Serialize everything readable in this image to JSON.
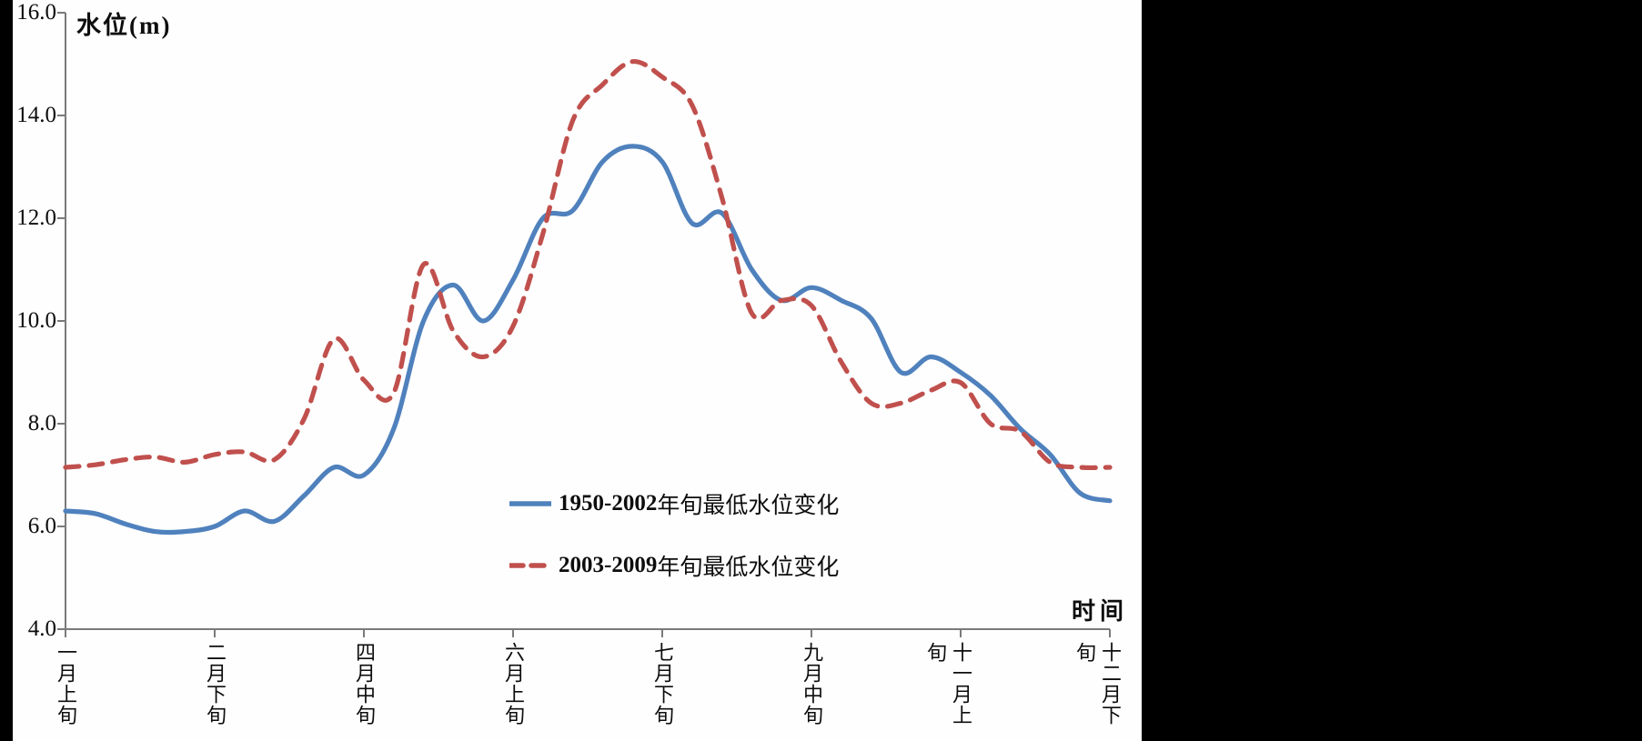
{
  "page": {
    "background_color": "#000000",
    "panel_color": "#fefefe"
  },
  "chart": {
    "y_axis": {
      "title": "水位(m)",
      "tick_labels": [
        "16.0",
        "14.0",
        "12.0",
        "10.0",
        "8.0",
        "6.0",
        "4.0"
      ],
      "tick_values": [
        16.0,
        14.0,
        12.0,
        10.0,
        8.0,
        6.0,
        4.0
      ]
    },
    "x_axis": {
      "title": "时间",
      "tick_labels": [
        "一月上旬",
        "二月下旬",
        "四月中旬",
        "六月上旬",
        "七月下旬",
        "九月中旬",
        "十一月上旬",
        "十二月下旬"
      ],
      "tick_point_indices": [
        0,
        5,
        10,
        15,
        20,
        25,
        30,
        35
      ]
    },
    "legend": [
      {
        "range": "1950-2002",
        "suffix": "年旬最低水位变化",
        "color": "#4F81BD",
        "style": "solid"
      },
      {
        "range": "2003-2009",
        "suffix": "年旬最低水位变化",
        "color": "#C0504D",
        "style": "dashed"
      }
    ],
    "axis_color": "#7a7a7a",
    "text_color": "#0d0d0d"
  },
  "chart_data": {
    "type": "line",
    "title": "",
    "xlabel": "时间",
    "ylabel": "水位(m)",
    "ylim": [
      4.0,
      16.0
    ],
    "y_tick_step": 2.0,
    "n_points": 36,
    "x_unit": "旬 (ten-day period), 36 per year",
    "x_tick_labels": [
      "一月上旬",
      "二月下旬",
      "四月中旬",
      "六月上旬",
      "七月下旬",
      "九月中旬",
      "十一月上旬",
      "十二月下旬"
    ],
    "x_tick_indices": [
      0,
      5,
      10,
      15,
      20,
      25,
      30,
      35
    ],
    "grid": false,
    "smooth": true,
    "legend_position": "inside-lower-center",
    "series": [
      {
        "name": "1950-2002年旬最低水位变化",
        "color": "#4F81BD",
        "line_style": "solid",
        "values": [
          6.3,
          6.25,
          6.05,
          5.9,
          5.9,
          6.0,
          6.3,
          6.1,
          6.6,
          7.15,
          7.0,
          7.9,
          10.0,
          10.7,
          10.0,
          10.8,
          12.0,
          12.15,
          13.1,
          13.4,
          13.1,
          11.9,
          12.1,
          11.0,
          10.4,
          10.65,
          10.4,
          10.05,
          9.0,
          9.3,
          9.0,
          8.55,
          7.9,
          7.4,
          6.65,
          6.5
        ]
      },
      {
        "name": "2003-2009年旬最低水位变化",
        "color": "#C0504D",
        "line_style": "dashed",
        "values": [
          7.15,
          7.2,
          7.3,
          7.35,
          7.25,
          7.4,
          7.45,
          7.3,
          8.1,
          9.65,
          8.85,
          8.6,
          11.1,
          9.8,
          9.3,
          9.9,
          11.7,
          13.9,
          14.6,
          15.05,
          14.75,
          14.2,
          12.4,
          10.15,
          10.4,
          10.3,
          9.2,
          8.4,
          8.4,
          8.65,
          8.8,
          8.0,
          7.85,
          7.25,
          7.15,
          7.15
        ]
      }
    ]
  }
}
